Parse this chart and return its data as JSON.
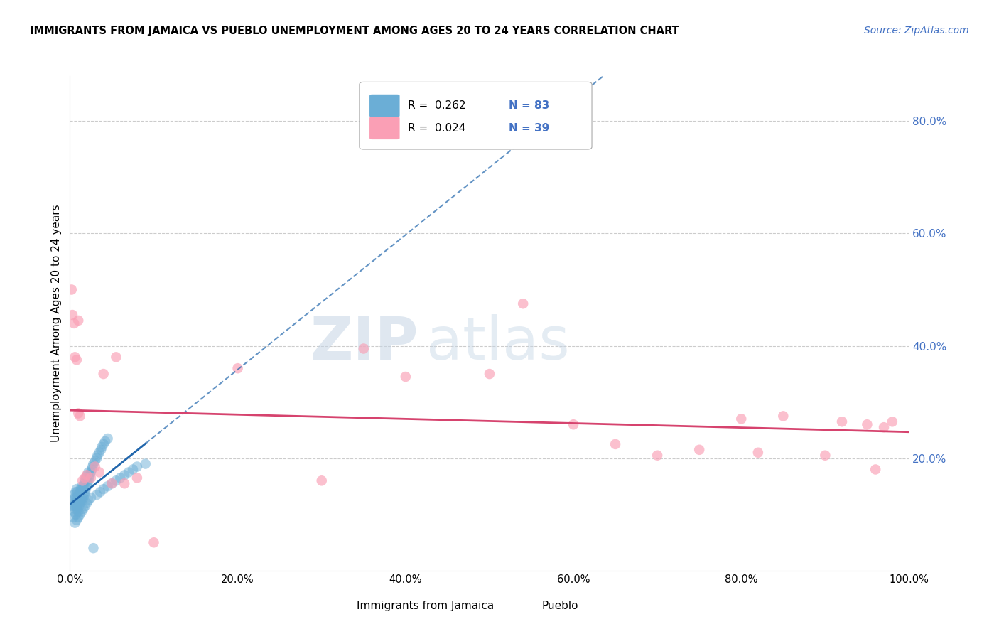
{
  "title": "IMMIGRANTS FROM JAMAICA VS PUEBLO UNEMPLOYMENT AMONG AGES 20 TO 24 YEARS CORRELATION CHART",
  "source": "Source: ZipAtlas.com",
  "ylabel": "Unemployment Among Ages 20 to 24 years",
  "xlim": [
    0,
    1.0
  ],
  "ylim": [
    0,
    0.88
  ],
  "blue_R": "0.262",
  "blue_N": "83",
  "pink_R": "0.024",
  "pink_N": "39",
  "blue_color": "#6baed6",
  "pink_color": "#fa9fb5",
  "blue_line_color": "#2166ac",
  "pink_line_color": "#d6436e",
  "legend_label_blue": "Immigrants from Jamaica",
  "legend_label_pink": "Pueblo",
  "grid_color": "#cccccc",
  "right_label_color": "#4472c4",
  "blue_points_x": [
    0.003,
    0.004,
    0.004,
    0.005,
    0.005,
    0.005,
    0.006,
    0.006,
    0.006,
    0.007,
    0.007,
    0.007,
    0.008,
    0.008,
    0.008,
    0.009,
    0.009,
    0.009,
    0.01,
    0.01,
    0.01,
    0.011,
    0.011,
    0.012,
    0.012,
    0.013,
    0.013,
    0.014,
    0.014,
    0.015,
    0.015,
    0.016,
    0.016,
    0.017,
    0.017,
    0.018,
    0.018,
    0.019,
    0.019,
    0.02,
    0.02,
    0.021,
    0.021,
    0.022,
    0.022,
    0.023,
    0.024,
    0.025,
    0.026,
    0.027,
    0.028,
    0.03,
    0.032,
    0.033,
    0.035,
    0.037,
    0.038,
    0.04,
    0.042,
    0.045,
    0.006,
    0.008,
    0.01,
    0.012,
    0.014,
    0.016,
    0.018,
    0.02,
    0.022,
    0.025,
    0.028,
    0.032,
    0.036,
    0.04,
    0.045,
    0.05,
    0.055,
    0.06,
    0.065,
    0.07,
    0.075,
    0.08,
    0.09
  ],
  "blue_points_y": [
    0.115,
    0.095,
    0.125,
    0.105,
    0.12,
    0.135,
    0.11,
    0.115,
    0.13,
    0.1,
    0.12,
    0.14,
    0.115,
    0.13,
    0.145,
    0.11,
    0.125,
    0.14,
    0.105,
    0.12,
    0.135,
    0.115,
    0.13,
    0.12,
    0.14,
    0.125,
    0.145,
    0.13,
    0.15,
    0.125,
    0.145,
    0.13,
    0.15,
    0.135,
    0.155,
    0.14,
    0.16,
    0.145,
    0.165,
    0.15,
    0.165,
    0.155,
    0.17,
    0.16,
    0.175,
    0.165,
    0.17,
    0.175,
    0.18,
    0.185,
    0.19,
    0.195,
    0.2,
    0.205,
    0.21,
    0.215,
    0.22,
    0.225,
    0.23,
    0.235,
    0.085,
    0.09,
    0.095,
    0.1,
    0.105,
    0.11,
    0.115,
    0.12,
    0.125,
    0.13,
    0.04,
    0.135,
    0.14,
    0.145,
    0.15,
    0.155,
    0.16,
    0.165,
    0.17,
    0.175,
    0.18,
    0.185,
    0.19
  ],
  "pink_points_x": [
    0.002,
    0.003,
    0.005,
    0.006,
    0.008,
    0.01,
    0.012,
    0.015,
    0.018,
    0.02,
    0.025,
    0.03,
    0.035,
    0.04,
    0.05,
    0.055,
    0.065,
    0.08,
    0.1,
    0.2,
    0.3,
    0.35,
    0.4,
    0.5,
    0.54,
    0.6,
    0.65,
    0.7,
    0.75,
    0.8,
    0.82,
    0.85,
    0.9,
    0.92,
    0.95,
    0.96,
    0.97,
    0.98,
    0.01
  ],
  "pink_points_y": [
    0.5,
    0.455,
    0.44,
    0.38,
    0.375,
    0.28,
    0.275,
    0.16,
    0.165,
    0.17,
    0.165,
    0.185,
    0.175,
    0.35,
    0.155,
    0.38,
    0.155,
    0.165,
    0.05,
    0.36,
    0.16,
    0.395,
    0.345,
    0.35,
    0.475,
    0.26,
    0.225,
    0.205,
    0.215,
    0.27,
    0.21,
    0.275,
    0.205,
    0.265,
    0.26,
    0.18,
    0.255,
    0.265,
    0.445
  ]
}
